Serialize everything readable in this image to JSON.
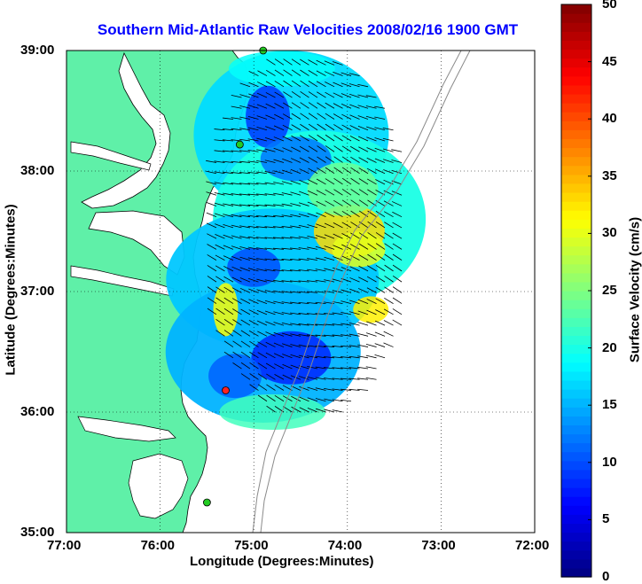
{
  "title": "Southern Mid-Atlantic Raw Velocities 2008/02/16 1900 GMT",
  "title_color": "#0000ff",
  "map": {
    "xlabel": "Longitude (Degrees:Minutes)",
    "ylabel": "Latitude (Degrees:Minutes)",
    "lon_range": [
      -77,
      -72
    ],
    "lat_range": [
      35,
      39
    ],
    "x_ticks": [
      {
        "value": -77,
        "label": "77:00"
      },
      {
        "value": -76,
        "label": "76:00"
      },
      {
        "value": -75,
        "label": "75:00"
      },
      {
        "value": -74,
        "label": "74:00"
      },
      {
        "value": -73,
        "label": "73:00"
      },
      {
        "value": -72,
        "label": "72:00"
      }
    ],
    "y_ticks": [
      {
        "value": 35,
        "label": "35:00"
      },
      {
        "value": 36,
        "label": "36:00"
      },
      {
        "value": 37,
        "label": "37:00"
      },
      {
        "value": 38,
        "label": "38:00"
      },
      {
        "value": 39,
        "label": "39:00"
      }
    ],
    "grid": "dotted",
    "land_color": "#5ff0a8",
    "stations": [
      {
        "name": "station-north",
        "lon": -74.9,
        "lat": 39.0,
        "color": "#22cc22"
      },
      {
        "name": "station-mid",
        "lon": -75.15,
        "lat": 38.22,
        "color": "#22cc22"
      },
      {
        "name": "station-red",
        "lon": -75.3,
        "lat": 36.18,
        "color": "#ff2222"
      },
      {
        "name": "station-south",
        "lon": -75.5,
        "lat": 35.25,
        "color": "#22cc22"
      }
    ]
  },
  "colorbar": {
    "label": "Surface Velocity (cm/s)",
    "min": 0,
    "max": 50,
    "ticks": [
      0,
      5,
      10,
      15,
      20,
      25,
      30,
      35,
      40,
      45,
      50
    ],
    "colormap": "jet"
  }
}
